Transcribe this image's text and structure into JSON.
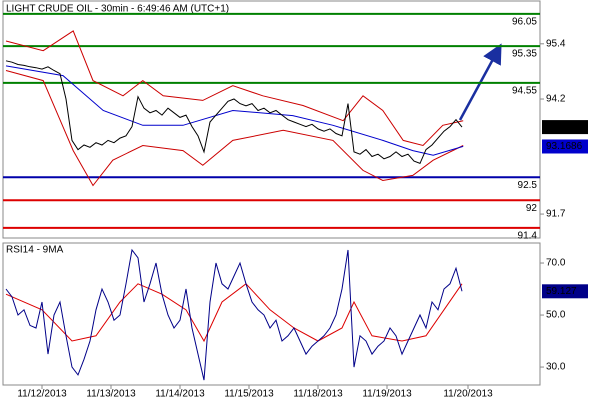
{
  "chart_data": [
    {
      "type": "line",
      "title": "LIGHT CRUDE OIL - 30min - 6:49:46 AM (UTC+1)",
      "ylim": [
        91.18,
        96.33
      ],
      "yticks": [
        91.7,
        94.2,
        95.4
      ],
      "xlim": [
        -0.5,
        89
      ],
      "x": [
        0,
        1,
        2,
        3,
        4,
        5,
        6,
        7,
        8,
        9,
        10,
        11,
        12,
        13,
        14,
        15,
        16,
        17,
        18,
        19,
        20,
        21,
        22,
        23,
        24,
        25,
        26,
        27,
        28,
        29,
        30,
        31,
        32,
        33,
        34,
        35,
        36,
        37,
        38,
        39,
        40,
        41,
        42,
        43,
        44,
        45,
        46,
        47,
        48,
        49,
        50,
        51,
        52,
        53,
        54,
        55,
        56,
        57,
        58,
        59,
        60,
        61,
        62,
        63,
        64,
        65,
        66,
        67,
        68,
        69,
        70,
        71,
        72,
        73,
        74,
        75,
        76
      ],
      "series": [
        {
          "color": "#cc0000",
          "x": [
            0,
            6.2,
            11.2,
            14.5,
            19.5,
            22.8,
            26.2,
            32.8,
            37.8,
            42.8,
            49.5,
            56.2,
            59.5,
            62.8,
            66.2,
            69.5,
            72.8,
            76.2
          ],
          "values": [
            95.46,
            95.25,
            95.68,
            94.6,
            94.27,
            94.6,
            94.27,
            94.17,
            94.49,
            94.27,
            94.06,
            93.73,
            94.27,
            93.95,
            93.3,
            93.19,
            93.63,
            93.73
          ]
        },
        {
          "color": "#cc0000",
          "x": [
            0,
            6.2,
            11.2,
            14.5,
            17.8,
            22.8,
            29.5,
            32.8,
            37.8,
            46.2,
            54.5,
            59.5,
            62.8,
            67.8,
            71.2,
            76.2
          ],
          "values": [
            94.82,
            94.6,
            93.08,
            92.32,
            92.87,
            93.19,
            93.08,
            92.76,
            93.3,
            93.52,
            93.3,
            92.65,
            92.43,
            92.54,
            92.87,
            93.19
          ]
        },
        {
          "color": "#0000cc",
          "x": [
            0,
            9.5,
            16.2,
            22.8,
            29.5,
            37.8,
            47.8,
            54.5,
            62.8,
            67.8,
            71.2,
            76.2
          ],
          "values": [
            94.92,
            94.71,
            93.95,
            93.63,
            93.63,
            93.95,
            93.84,
            93.63,
            93.3,
            93.08,
            92.98,
            93.17
          ]
        },
        {
          "color": "#000000",
          "values": [
            95.03,
            95.0,
            94.95,
            94.93,
            94.9,
            94.88,
            94.85,
            94.9,
            94.82,
            94.75,
            94.2,
            93.3,
            93.1,
            93.2,
            93.15,
            93.25,
            93.2,
            93.3,
            93.25,
            93.35,
            93.4,
            93.6,
            94.25,
            94.0,
            93.9,
            93.95,
            93.85,
            94.0,
            93.9,
            93.8,
            93.85,
            93.6,
            93.4,
            93.05,
            93.7,
            93.85,
            94.0,
            94.15,
            94.2,
            94.1,
            94.05,
            94.1,
            93.95,
            94.0,
            93.9,
            93.95,
            93.85,
            93.75,
            93.7,
            93.65,
            93.6,
            93.65,
            93.55,
            93.5,
            93.55,
            93.45,
            93.4,
            94.1,
            93.05,
            93.0,
            93.1,
            92.95,
            93.0,
            92.9,
            92.95,
            93.05,
            92.95,
            93.0,
            92.85,
            92.8,
            93.1,
            93.2,
            93.35,
            93.5,
            93.6,
            93.75,
            93.59
          ]
        }
      ],
      "levels": [
        {
          "value": 96.05,
          "color": "#008000"
        },
        {
          "value": 95.35,
          "color": "#008000"
        },
        {
          "value": 94.55,
          "color": "#008000"
        },
        {
          "value": 92.5,
          "color": "#0000aa"
        },
        {
          "value": 92,
          "color": "#dd0000"
        },
        {
          "value": 91.4,
          "color": "#dd0000"
        }
      ],
      "price_tags": [
        {
          "value": 93.59,
          "color": "#000000"
        },
        {
          "value": 93.1686,
          "color": "#0000cc"
        }
      ]
    },
    {
      "type": "line",
      "title": "RSI14 - 9MA",
      "ylim": [
        23.1,
        77.7
      ],
      "yticks": [
        {
          "value": 30,
          "label": "30.0"
        },
        {
          "value": 50,
          "label": "50.0"
        },
        {
          "value": 70,
          "label": "70.0"
        }
      ],
      "xlim": [
        -0.5,
        89
      ],
      "x": [
        0,
        1,
        2,
        3,
        4,
        5,
        6,
        7,
        8,
        9,
        10,
        11,
        12,
        13,
        14,
        15,
        16,
        17,
        18,
        19,
        20,
        21,
        22,
        23,
        24,
        25,
        26,
        27,
        28,
        29,
        30,
        31,
        32,
        33,
        34,
        35,
        36,
        37,
        38,
        39,
        40,
        41,
        42,
        43,
        44,
        45,
        46,
        47,
        48,
        49,
        50,
        51,
        52,
        53,
        54,
        55,
        56,
        57,
        58,
        59,
        60,
        61,
        62,
        63,
        64,
        65,
        66,
        67,
        68,
        69,
        70,
        71,
        72,
        73,
        74,
        75,
        76
      ],
      "xticks": [
        {
          "value": 6,
          "label": "11/12/2013"
        },
        {
          "value": 17.5,
          "label": "11/13/2013"
        },
        {
          "value": 29,
          "label": "11/14/2013"
        },
        {
          "value": 40.5,
          "label": "11/15/2013"
        },
        {
          "value": 52,
          "label": "11/18/2013"
        },
        {
          "value": 63.5,
          "label": "11/19/2013"
        },
        {
          "value": 77,
          "label": "11/20/2013"
        }
      ],
      "series": [
        {
          "color": "#dd0000",
          "x": [
            0,
            6,
            11,
            15,
            19,
            22,
            26,
            30,
            33,
            36,
            40,
            44,
            48,
            52,
            56,
            58,
            61,
            66,
            70,
            73,
            76
          ],
          "values": [
            58,
            52,
            40,
            42,
            55,
            62,
            58,
            52,
            40,
            55,
            62,
            52,
            45,
            40,
            45,
            55,
            42,
            40,
            42,
            52,
            62
          ]
        },
        {
          "color": "#000088",
          "values": [
            60,
            57,
            50,
            52,
            46,
            45,
            55,
            35,
            50,
            55,
            42,
            30,
            27,
            33,
            40,
            52,
            60,
            55,
            48,
            50,
            62,
            75,
            72,
            55,
            62,
            70,
            58,
            50,
            45,
            48,
            60,
            45,
            35,
            25,
            55,
            70,
            62,
            60,
            65,
            70,
            62,
            55,
            52,
            50,
            45,
            48,
            40,
            42,
            45,
            40,
            35,
            38,
            40,
            42,
            45,
            50,
            60,
            75,
            30,
            42,
            40,
            35,
            38,
            40,
            45,
            42,
            35,
            40,
            45,
            50,
            45,
            55,
            52,
            60,
            62,
            68,
            59.127
          ]
        }
      ],
      "price_tags": [
        {
          "value": 59.127,
          "color": "#000088"
        }
      ]
    }
  ]
}
